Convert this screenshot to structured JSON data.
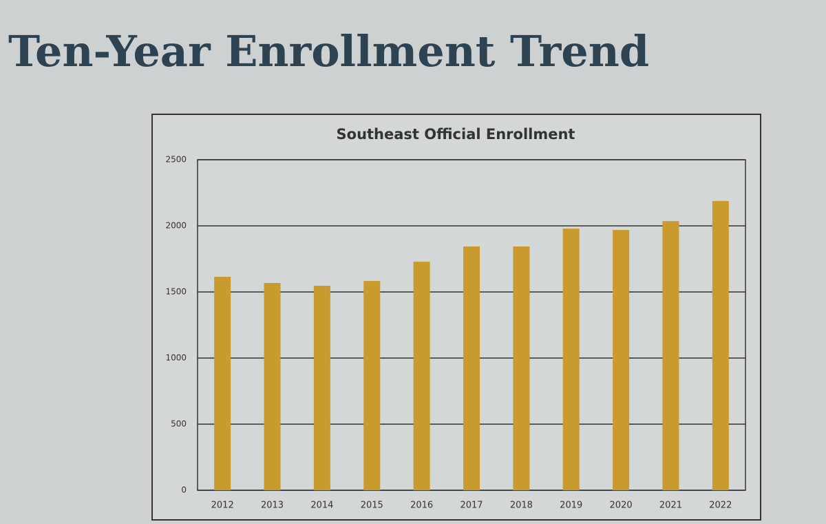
{
  "slide_title": "Ten-Year Enrollment Trend",
  "chart_data": {
    "type": "bar",
    "title": "Southeast Official Enrollment",
    "categories": [
      "2012",
      "2013",
      "2014",
      "2015",
      "2016",
      "2017",
      "2018",
      "2019",
      "2020",
      "2021",
      "2022"
    ],
    "values": [
      1615,
      1568,
      1547,
      1583,
      1729,
      1844,
      1844,
      1979,
      1969,
      2036,
      2188
    ],
    "color": "#c99a2e",
    "ylim": [
      0,
      2500
    ],
    "yticks": [
      0,
      500,
      1000,
      1500,
      2000,
      2500
    ],
    "grid": true
  }
}
